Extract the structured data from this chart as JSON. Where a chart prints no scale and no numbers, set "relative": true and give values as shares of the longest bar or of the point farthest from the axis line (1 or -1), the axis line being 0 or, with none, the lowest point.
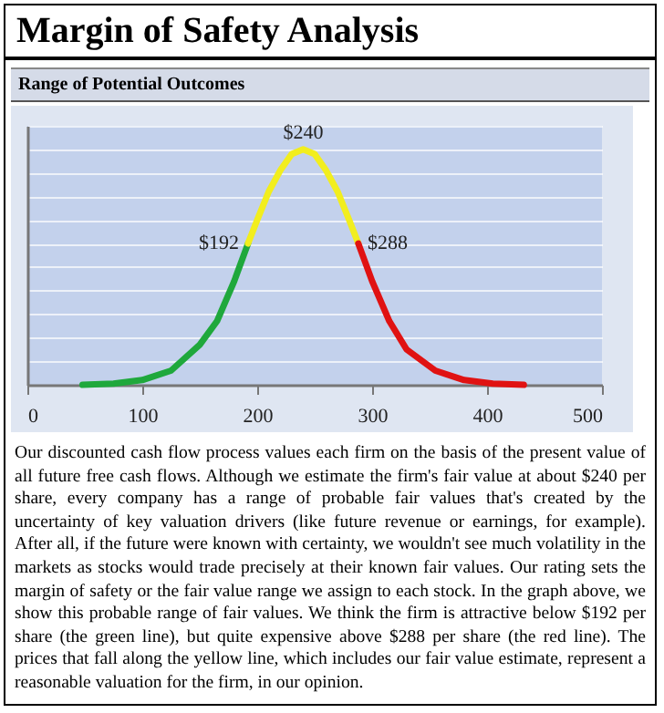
{
  "chart_data": {
    "type": "line",
    "title": "Margin of Safety Analysis",
    "subtitle": "Range of Potential Outcomes",
    "relative": true,
    "xlim": [
      0,
      500
    ],
    "xticks": [
      0,
      100,
      200,
      300,
      400,
      500
    ],
    "grid": "y",
    "marker": "none",
    "line_style": "solid",
    "series": [
      {
        "color": "#1fa83c",
        "x": [
          48,
          75,
          100,
          125,
          150,
          165,
          180,
          192
        ],
        "values": [
          0,
          0.005,
          0.02,
          0.06,
          0.17,
          0.27,
          0.44,
          0.6
        ]
      },
      {
        "color": "#f2ee1e",
        "x": [
          192,
          200,
          210,
          220,
          230,
          240,
          250,
          260,
          270,
          280,
          288
        ],
        "values": [
          0.6,
          0.7,
          0.82,
          0.91,
          0.98,
          1,
          0.98,
          0.91,
          0.82,
          0.7,
          0.6
        ]
      },
      {
        "color": "#e01212",
        "x": [
          288,
          300,
          315,
          330,
          355,
          380,
          405,
          432
        ],
        "values": [
          0.6,
          0.44,
          0.27,
          0.15,
          0.06,
          0.02,
          0.005,
          0
        ]
      }
    ],
    "annotations": [
      {
        "text": "$192",
        "x": 192,
        "y": 0.6
      },
      {
        "text": "$240",
        "x": 240,
        "y": 1
      },
      {
        "text": "$288",
        "x": 288,
        "y": 0.6
      },
      "Our discounted cash flow process values each firm on the basis of the present value of all future free cash flows. Although we estimate the firm's fair value at about $240 per share, every company has a range of probable fair values that's created by the uncertainty of key valuation drivers (like future revenue or earnings, for example). After all, if the future were known with certainty, we wouldn't see much volatility in the markets as stocks would trade precisely at their known fair values. Our rating sets the margin of safety or the fair value range we assign to each stock. In the graph above, we show this probable range of fair values. We think the firm is attractive below $192 per share (the green line), but quite expensive above $288 per share (the red line). The prices that fall along the yellow line, which includes our fair value estimate, represent a reasonable valuation for the firm, in our opinion."
    ]
  }
}
